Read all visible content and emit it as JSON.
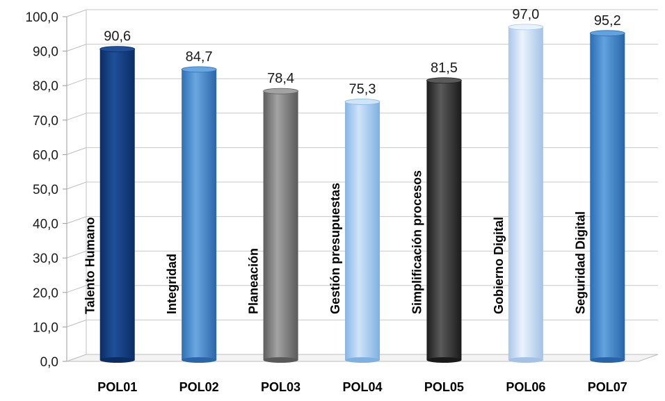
{
  "chart_data": {
    "type": "bar",
    "categories": [
      "POL01",
      "POL02",
      "POL03",
      "POL04",
      "POL05",
      "POL06",
      "POL07"
    ],
    "bar_names": [
      "Talento Humano",
      "Integridad",
      "Planeación",
      "Gestión presupuestas",
      "Simplificación procesos",
      "Gobierno Digital",
      "Seguridad Digital"
    ],
    "values": [
      90.6,
      84.7,
      78.4,
      75.3,
      81.5,
      97.0,
      95.2
    ],
    "value_labels": [
      "90,6",
      "84,7",
      "78,4",
      "75,3",
      "81,5",
      "97,0",
      "95,2"
    ],
    "ylim": [
      0,
      100
    ],
    "yticks": [
      0,
      10,
      20,
      30,
      40,
      50,
      60,
      70,
      80,
      90,
      100
    ],
    "ytick_labels": [
      "0,0",
      "10,0",
      "20,0",
      "30,0",
      "40,0",
      "50,0",
      "60,0",
      "70,0",
      "80,0",
      "90,0",
      "100,0"
    ],
    "grid": true,
    "legend": "none",
    "bar_colors": [
      [
        "#0b2d63",
        "#1f4f9a",
        "#0b2d63"
      ],
      [
        "#2f6fb4",
        "#6aa7e2",
        "#2a66a8"
      ],
      [
        "#5e5e5e",
        "#a3a3a3",
        "#5a5a5a"
      ],
      [
        "#86b6e6",
        "#cfe4f8",
        "#7fb0e2"
      ],
      [
        "#1c1c1c",
        "#5a5a5a",
        "#1a1a1a"
      ],
      [
        "#a9c7ea",
        "#eaf3fc",
        "#a4c2e6"
      ],
      [
        "#2a6db3",
        "#63a2df",
        "#2765a8"
      ]
    ]
  }
}
